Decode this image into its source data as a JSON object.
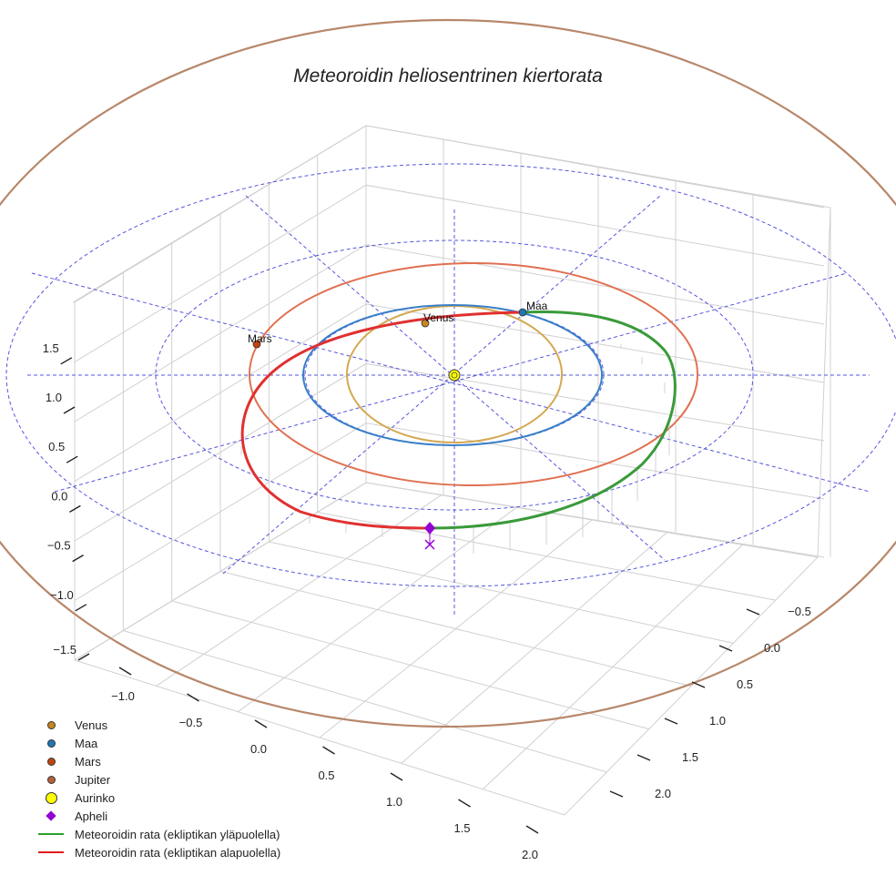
{
  "chart_data": {
    "type": "line",
    "title": "Meteoroidin heliosentrinen kiertorata",
    "x_ticks": [
      "−1.0",
      "−0.5",
      "0.0",
      "0.5",
      "1.0",
      "1.5",
      "2.0"
    ],
    "y_ticks": [
      "−0.5",
      "0.0",
      "0.5",
      "1.0",
      "1.5",
      "2.0"
    ],
    "z_ticks": [
      "−1.5",
      "−1.0",
      "−0.5",
      "0.0",
      "0.5",
      "1.0",
      "1.5"
    ],
    "orbits": [
      {
        "name": "Venus",
        "radius_au": 0.72,
        "color": "#d4a850"
      },
      {
        "name": "Maa",
        "radius_au": 1.0,
        "color": "#3a7fc8"
      },
      {
        "name": "Mars",
        "radius_au": 1.52,
        "color": "#e07050"
      },
      {
        "name": "Jupiter",
        "radius_au": 5.2,
        "color": "#b8876a"
      }
    ],
    "planet_labels": {
      "venus": "Venus",
      "maa": "Maa",
      "mars": "Mars"
    },
    "legend": [
      {
        "label": "Venus",
        "symbol": "dot",
        "color": "#c8861f"
      },
      {
        "label": "Maa",
        "symbol": "dot",
        "color": "#1f77b4"
      },
      {
        "label": "Mars",
        "symbol": "dot",
        "color": "#c1440e"
      },
      {
        "label": "Jupiter",
        "symbol": "dot",
        "color": "#b5623a"
      },
      {
        "label": "Aurinko",
        "symbol": "bigdot",
        "color": "#ffff00"
      },
      {
        "label": "Apheli",
        "symbol": "diamond",
        "color": "#9400d3"
      },
      {
        "label": "Meteoroidin rata (ekliptikan yläpuolella)",
        "symbol": "line",
        "color": "#2ca02c"
      },
      {
        "label": "Meteoroidin rata (ekliptikan alapuolella)",
        "symbol": "line",
        "color": "#e41a1c"
      }
    ],
    "meteoroid": {
      "above_color": "#3a9a3a",
      "below_color": "#e03030",
      "aphelion_marker_color": "#9400d3"
    },
    "grid": true,
    "reference_circles_color": "#5555dd"
  }
}
